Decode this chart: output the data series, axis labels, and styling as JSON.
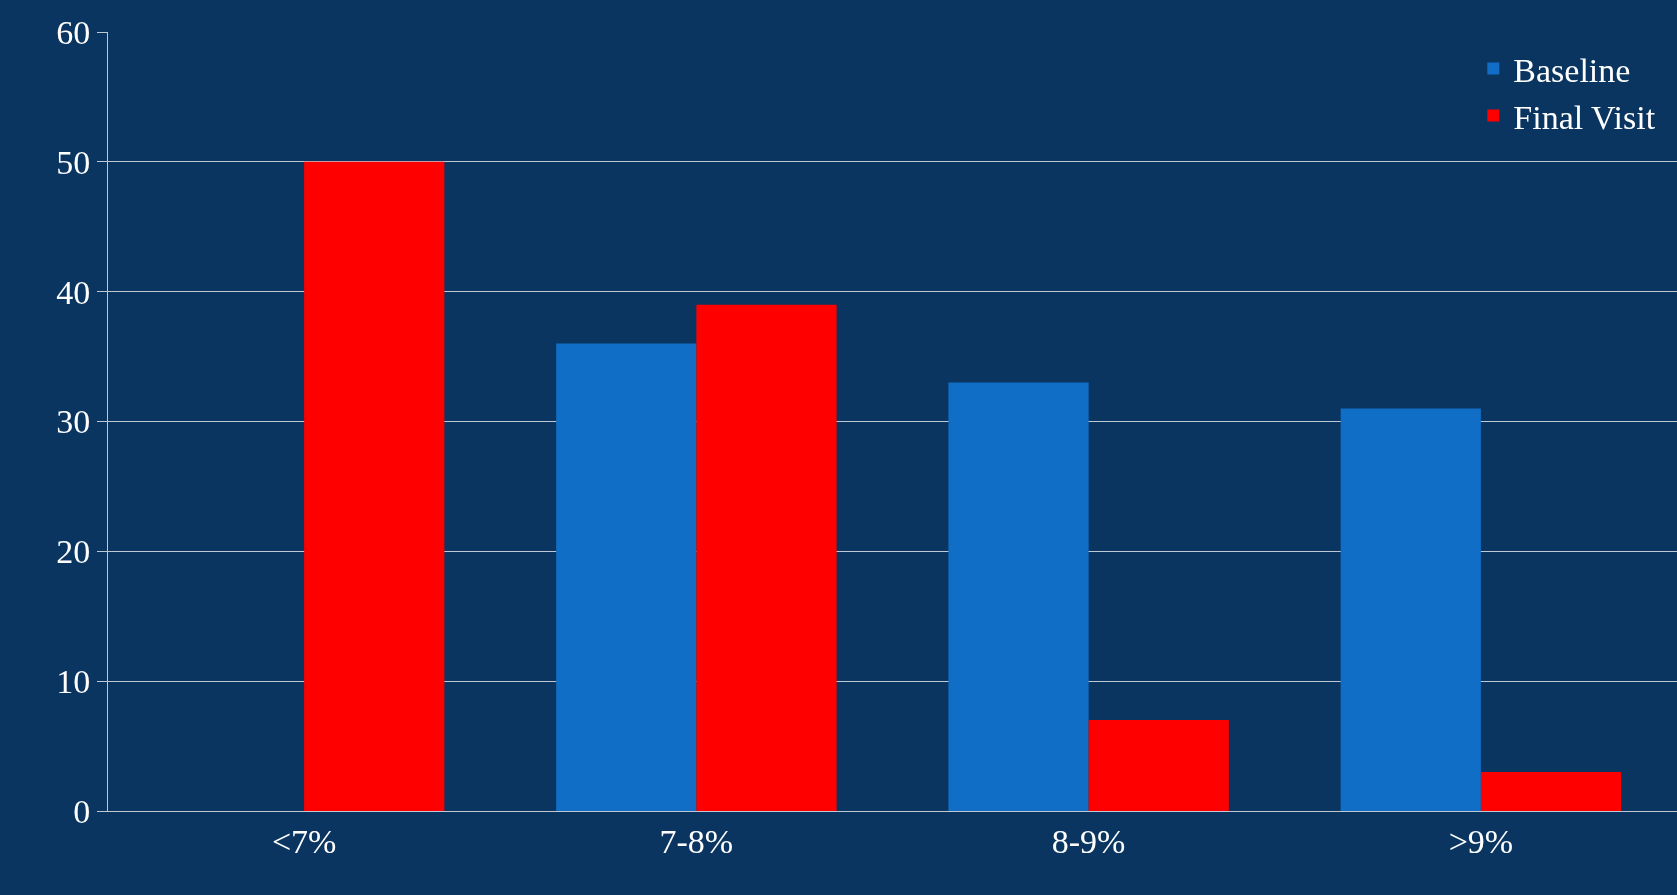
{
  "chart_data": {
    "type": "bar",
    "categories": [
      "<7%",
      "7-8%",
      "8-9%",
      ">9%"
    ],
    "series": [
      {
        "name": "Baseline",
        "color": "#106ec6",
        "values": [
          0,
          36,
          33,
          31
        ]
      },
      {
        "name": "Final Visit",
        "color": "#ff0000",
        "values": [
          50,
          39,
          7,
          3
        ]
      }
    ],
    "ylim": [
      0,
      60
    ],
    "yticks": [
      0,
      10,
      20,
      30,
      40,
      50,
      60
    ],
    "grid": "y",
    "legend": "top right"
  }
}
